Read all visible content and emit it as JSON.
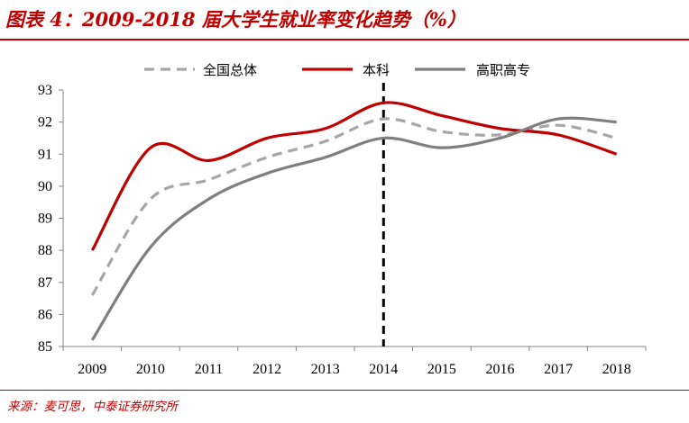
{
  "header": {
    "title": "图表 4：2009-2018 届大学生就业率变化趋势（%）"
  },
  "footer": {
    "source": "来源：麦可思，中泰证券研究所"
  },
  "chart_data": {
    "type": "line",
    "title": "图表 4：2009-2018 届大学生就业率变化趋势（%）",
    "xlabel": "",
    "ylabel": "",
    "x": [
      2009,
      2010,
      2011,
      2012,
      2013,
      2014,
      2015,
      2016,
      2017,
      2018
    ],
    "ylim": [
      85,
      93
    ],
    "yticks": [
      85,
      86,
      87,
      88,
      89,
      90,
      91,
      92,
      93
    ],
    "grid": false,
    "legend_position": "top",
    "series": [
      {
        "name": "全国总体",
        "color": "#a6a6a6",
        "dash": "dashed",
        "values": [
          86.6,
          89.6,
          90.2,
          90.9,
          91.4,
          92.1,
          91.7,
          91.6,
          91.9,
          91.5
        ]
      },
      {
        "name": "本科",
        "color": "#c00000",
        "dash": "solid",
        "values": [
          88.0,
          91.2,
          90.8,
          91.5,
          91.8,
          92.6,
          92.2,
          91.8,
          91.6,
          91.0
        ]
      },
      {
        "name": "高职高专",
        "color": "#7f7f7f",
        "dash": "solid",
        "values": [
          85.2,
          88.1,
          89.6,
          90.4,
          90.9,
          91.5,
          91.2,
          91.5,
          92.1,
          92.0
        ]
      }
    ],
    "annotations": [
      {
        "type": "vertical-dashed-line",
        "x": 2014,
        "color": "#000000"
      }
    ]
  }
}
